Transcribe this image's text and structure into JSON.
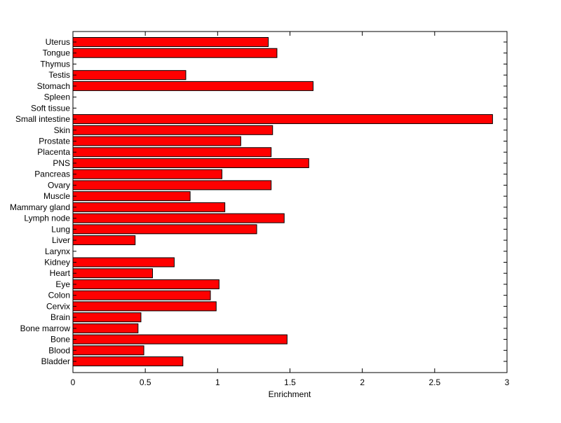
{
  "chart_data": {
    "type": "bar",
    "orientation": "horizontal",
    "title": "",
    "xlabel": "Enrichment",
    "ylabel": "",
    "xlim": [
      0,
      3
    ],
    "xticks": [
      "0",
      "0.5",
      "1",
      "1.5",
      "2",
      "2.5",
      "3"
    ],
    "xtick_values": [
      0,
      0.5,
      1,
      1.5,
      2,
      2.5,
      3
    ],
    "grid": false,
    "bar_color": "#ff0000",
    "categories": [
      "Uterus",
      "Tongue",
      "Thymus",
      "Testis",
      "Stomach",
      "Spleen",
      "Soft tissue",
      "Small intestine",
      "Skin",
      "Prostate",
      "Placenta",
      "PNS",
      "Pancreas",
      "Ovary",
      "Muscle",
      "Mammary gland",
      "Lymph node",
      "Lung",
      "Liver",
      "Larynx",
      "Kidney",
      "Heart",
      "Eye",
      "Colon",
      "Cervix",
      "Brain",
      "Bone marrow",
      "Bone",
      "Blood",
      "Bladder"
    ],
    "values": [
      1.35,
      1.41,
      0,
      0.78,
      1.66,
      0,
      0,
      2.9,
      1.38,
      1.16,
      1.37,
      1.63,
      1.03,
      1.37,
      0.81,
      1.05,
      1.46,
      1.27,
      0.43,
      0,
      0.7,
      0.55,
      1.01,
      0.95,
      0.99,
      0.47,
      0.45,
      1.48,
      0.49,
      0.76
    ]
  }
}
